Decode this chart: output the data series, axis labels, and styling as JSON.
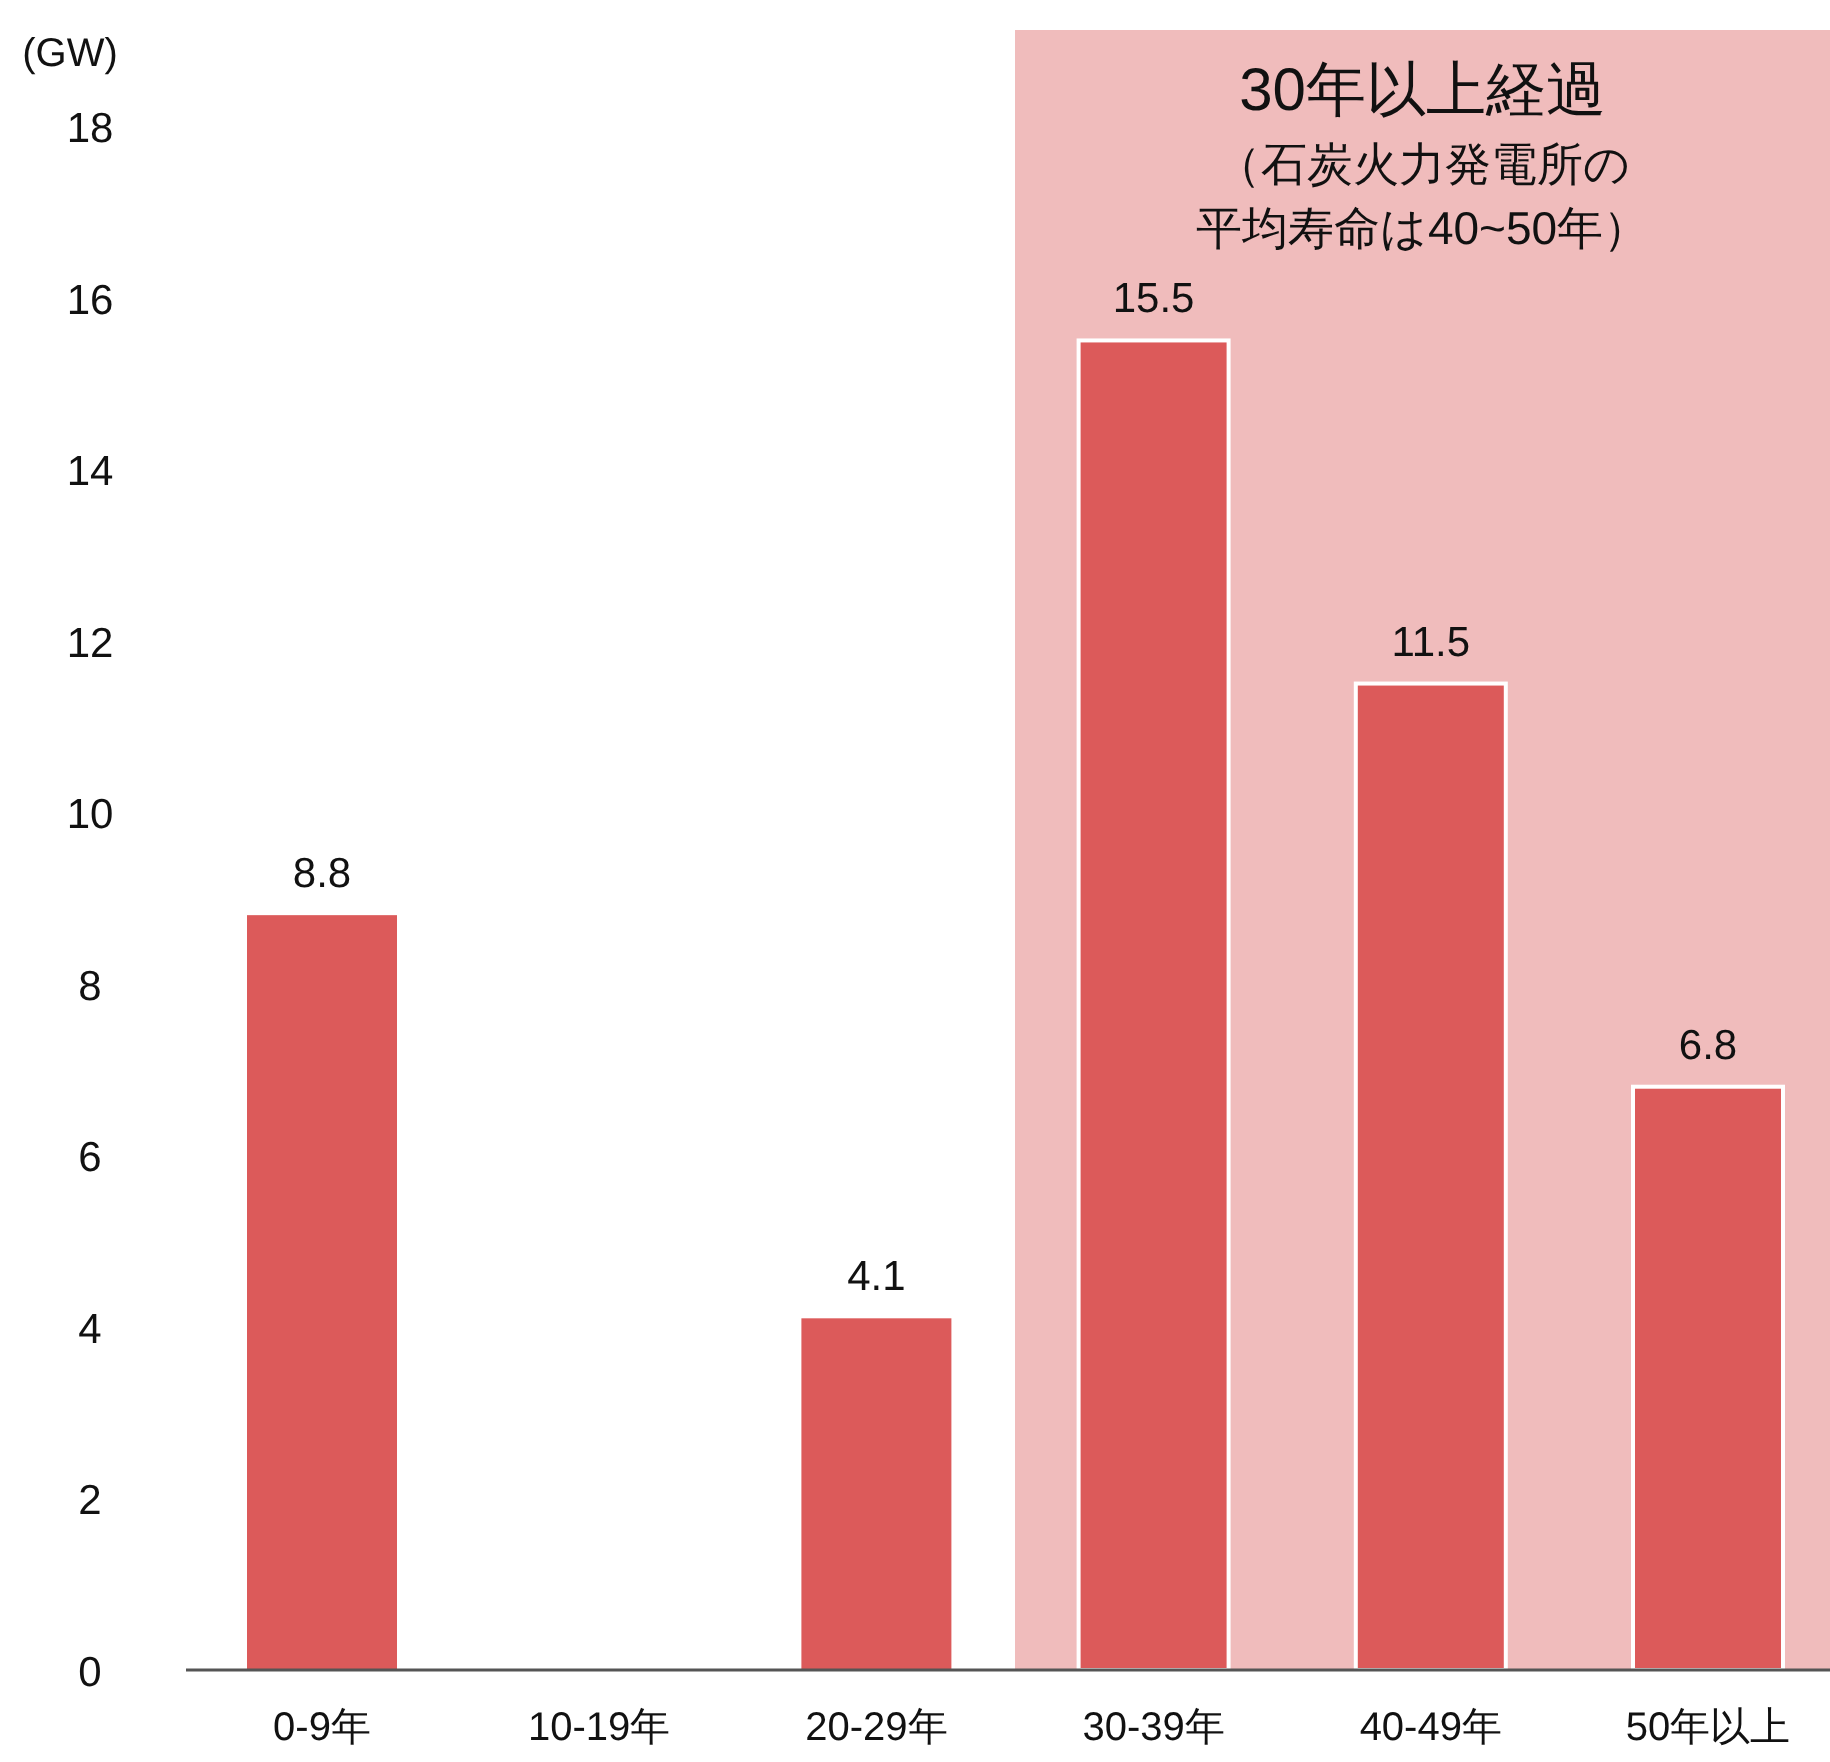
{
  "chart_data": {
    "type": "bar",
    "ylabel": "(GW)",
    "categories": [
      "0-9年",
      "10-19年",
      "20-29年",
      "30-39年",
      "40-49年",
      "50年以上"
    ],
    "values": [
      8.8,
      0,
      4.1,
      15.5,
      11.5,
      6.8
    ],
    "value_labels": [
      "8.8",
      null,
      "4.1",
      "15.5",
      "11.5",
      "6.8"
    ],
    "color": "#dc5a5a",
    "ylim": [
      0,
      18
    ],
    "yticks": [
      0,
      2,
      4,
      6,
      8,
      10,
      12,
      14,
      16,
      18
    ],
    "bands": [
      {
        "axis": "x",
        "from": "30-39年",
        "to": "50年以上",
        "label": "30年以上経過",
        "color": "#f0bcbc"
      }
    ],
    "annotations": [
      "（石炭火力発電所の",
      "平均寿命は40~50年）"
    ],
    "grid": false
  }
}
